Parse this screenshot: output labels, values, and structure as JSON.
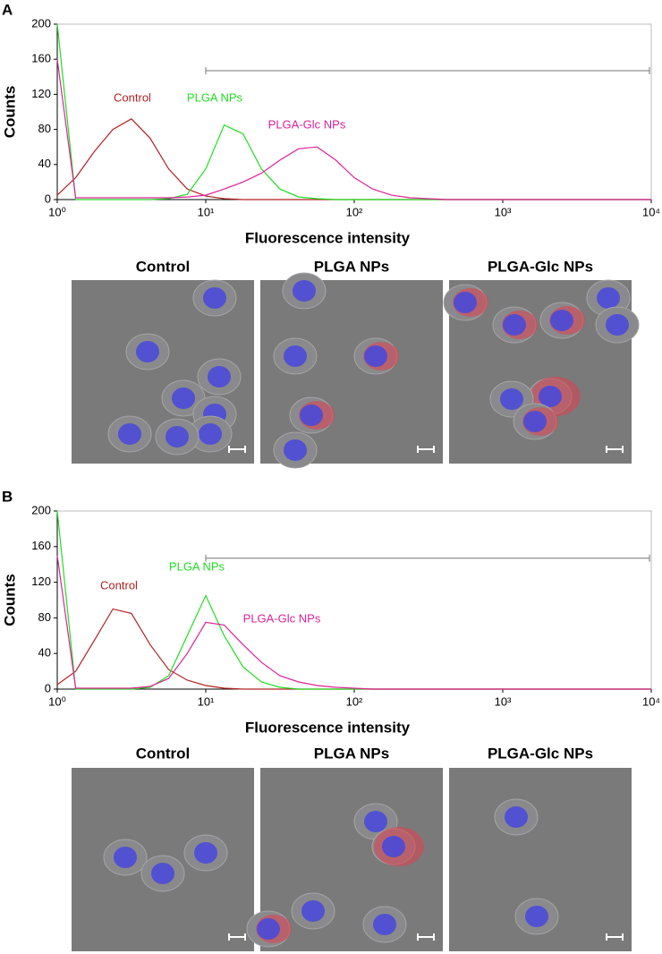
{
  "chart_data": [
    {
      "type": "line",
      "panel": "A",
      "xlabel": "Fluorescence intensity",
      "ylabel": "Counts",
      "xscale": "log",
      "xlim": [
        1,
        10000
      ],
      "xticks": [
        {
          "value": 1,
          "label": "10⁰"
        },
        {
          "value": 10,
          "label": "10¹"
        },
        {
          "value": 100,
          "label": "10²"
        },
        {
          "value": 1000,
          "label": "10³"
        },
        {
          "value": 10000,
          "label": "10⁴"
        }
      ],
      "ylim": [
        0,
        200
      ],
      "yticks": [
        0,
        40,
        80,
        120,
        160,
        200
      ],
      "gate": {
        "x": [
          10,
          10000
        ],
        "y": 147
      },
      "x": [
        1,
        1.33,
        1.78,
        2.37,
        3.16,
        4.22,
        5.62,
        7.5,
        10,
        13.3,
        17.8,
        23.7,
        31.6,
        42.2,
        56.2,
        75,
        100,
        133,
        178,
        237,
        316,
        422,
        562,
        750,
        1000,
        1330,
        1780,
        2370,
        3160,
        4220,
        5620,
        7500,
        10000
      ],
      "series": [
        {
          "name": "Control",
          "color": "#b22222",
          "values": [
            5,
            25,
            55,
            80,
            92,
            70,
            35,
            12,
            4,
            1,
            0,
            0,
            0,
            0,
            0,
            0,
            0,
            0,
            0,
            0,
            0,
            0,
            0,
            0,
            0,
            0,
            0,
            0,
            0,
            0,
            0,
            0,
            0
          ]
        },
        {
          "name": "PLGA NPs",
          "color": "#22dd22",
          "values": [
            200,
            0,
            0,
            0,
            0,
            0,
            1,
            6,
            35,
            85,
            75,
            35,
            12,
            3,
            1,
            0,
            0,
            0,
            0,
            0,
            0,
            0,
            0,
            0,
            0,
            0,
            0,
            0,
            0,
            0,
            0,
            0,
            0
          ]
        },
        {
          "name": "PLGA-Glc NPs",
          "color": "#dd2299",
          "values": [
            160,
            2,
            2,
            2,
            2,
            2,
            2,
            3,
            5,
            12,
            20,
            30,
            45,
            58,
            60,
            45,
            25,
            12,
            5,
            2,
            1,
            0,
            0,
            0,
            0,
            0,
            0,
            0,
            0,
            0,
            0,
            0,
            0
          ]
        }
      ]
    },
    {
      "type": "line",
      "panel": "B",
      "xlabel": "Fluorescence intensity",
      "ylabel": "Counts",
      "xscale": "log",
      "xlim": [
        1,
        10000
      ],
      "xticks": [
        {
          "value": 1,
          "label": "10⁰"
        },
        {
          "value": 10,
          "label": "10¹"
        },
        {
          "value": 100,
          "label": "10²"
        },
        {
          "value": 1000,
          "label": "10³"
        },
        {
          "value": 10000,
          "label": "10⁴"
        }
      ],
      "ylim": [
        0,
        200
      ],
      "yticks": [
        0,
        40,
        80,
        120,
        160,
        200
      ],
      "gate": {
        "x": [
          10,
          10000
        ],
        "y": 147
      },
      "x": [
        1,
        1.33,
        1.78,
        2.37,
        3.16,
        4.22,
        5.62,
        7.5,
        10,
        13.3,
        17.8,
        23.7,
        31.6,
        42.2,
        56.2,
        75,
        100,
        133,
        178,
        237,
        316,
        422,
        562,
        750,
        1000,
        1330,
        1780,
        2370,
        3160,
        4220,
        5620,
        7500,
        10000
      ],
      "series": [
        {
          "name": "Control",
          "color": "#b22222",
          "values": [
            5,
            20,
            55,
            90,
            85,
            50,
            22,
            10,
            4,
            1,
            0,
            0,
            0,
            0,
            0,
            0,
            0,
            0,
            0,
            0,
            0,
            0,
            0,
            0,
            0,
            0,
            0,
            0,
            0,
            0,
            0,
            0,
            0
          ]
        },
        {
          "name": "PLGA NPs",
          "color": "#22dd22",
          "values": [
            200,
            0,
            0,
            0,
            0,
            2,
            15,
            60,
            105,
            60,
            25,
            8,
            2,
            0,
            0,
            0,
            0,
            0,
            0,
            0,
            0,
            0,
            0,
            0,
            0,
            0,
            0,
            0,
            0,
            0,
            0,
            0,
            0
          ]
        },
        {
          "name": "PLGA-Glc NPs",
          "color": "#dd2299",
          "values": [
            150,
            1,
            1,
            1,
            1,
            3,
            12,
            40,
            75,
            72,
            50,
            30,
            15,
            8,
            4,
            2,
            1,
            0,
            0,
            0,
            0,
            0,
            0,
            0,
            0,
            0,
            0,
            0,
            0,
            0,
            0,
            0,
            0
          ]
        }
      ]
    }
  ],
  "figure": {
    "image_titles": [
      [
        "Control",
        "PLGA NPs",
        "PLGA-Glc NPs"
      ],
      [
        "Control",
        "PLGA NPs",
        "PLGA-Glc NPs"
      ]
    ]
  }
}
